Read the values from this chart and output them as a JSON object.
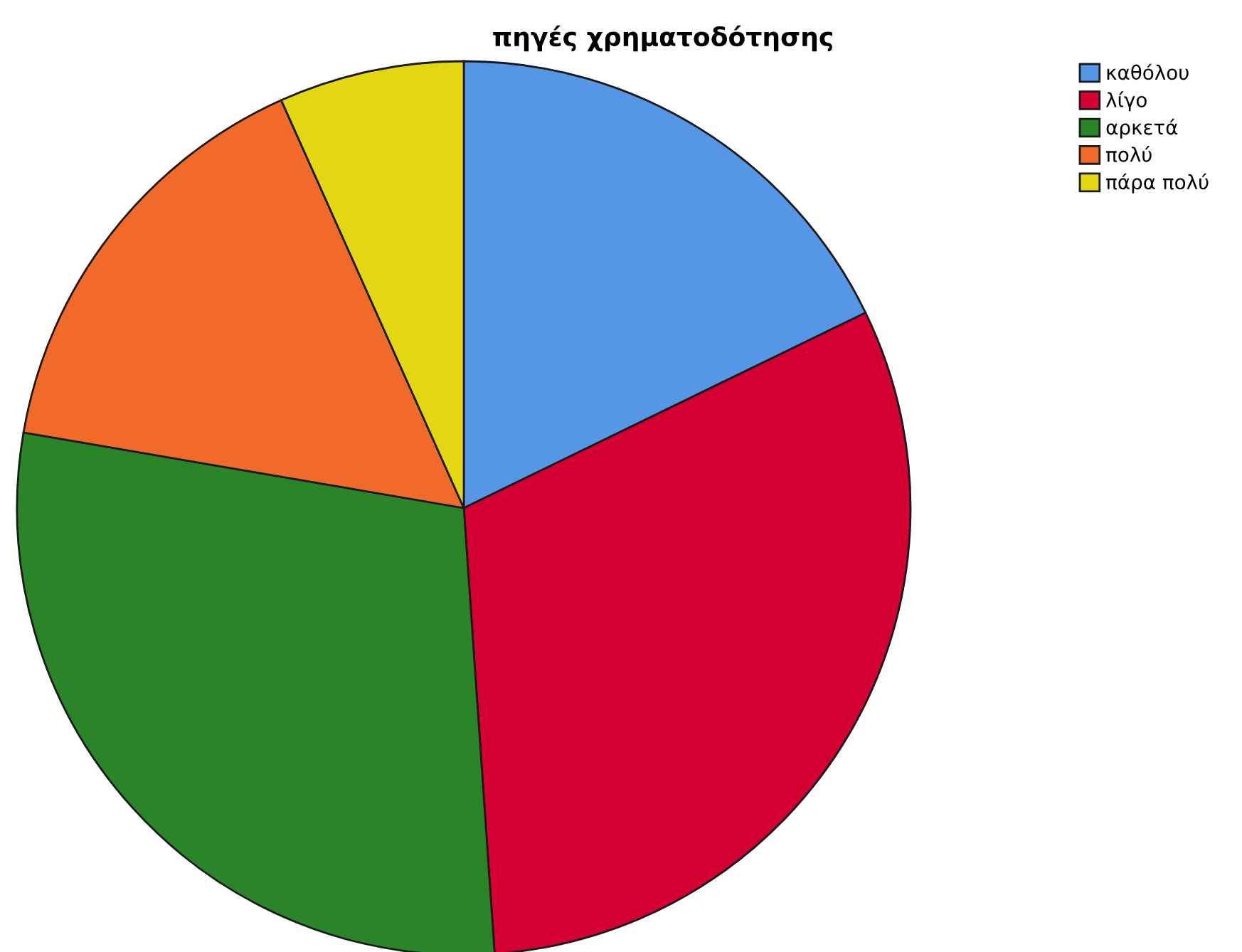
{
  "chart_data": {
    "type": "pie",
    "title": "πηγές χρηματοδότησης",
    "categories": [
      "καθόλου",
      "λίγο",
      "αρκετά",
      "πολύ",
      "πάρα πολύ"
    ],
    "values": [
      17.8,
      31.1,
      28.8,
      15.6,
      6.7
    ],
    "colors": [
      "#5596e6",
      "#d50032",
      "#2a8528",
      "#f26a2a",
      "#e2d710"
    ],
    "legend": "top right"
  }
}
